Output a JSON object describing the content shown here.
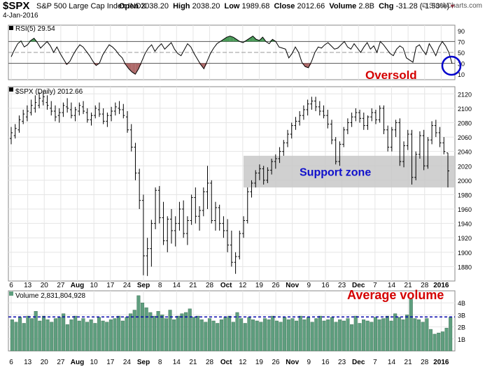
{
  "header": {
    "symbol": "$SPX",
    "name": "S&P 500 Large Cap Index",
    "exchange": "INDX",
    "date": "4-Jan-2016",
    "open_label": "Open",
    "open": "2038.20",
    "high_label": "High",
    "high": "2038.20",
    "low_label": "Low",
    "low": "1989.68",
    "close_label": "Close",
    "close": "2012.66",
    "volume_label": "Volume",
    "volume": "2.8B",
    "chg_label": "Chg",
    "chg": "-31.28 (-1.53%)",
    "credit": "© StockCharts.com"
  },
  "chart_data": [
    {
      "type": "line",
      "panel": "RSI",
      "legend": "RSI(5) 29.54",
      "ylim": [
        0,
        100
      ],
      "yticks": [
        10,
        30,
        50,
        70,
        90
      ],
      "overbought": 70,
      "oversold": 30,
      "midline": 50,
      "series": [
        {
          "values": [
            42,
            55,
            66,
            71,
            60,
            64,
            72,
            76,
            68,
            58,
            64,
            70,
            62,
            50,
            60,
            48,
            38,
            28,
            34,
            46,
            56,
            64,
            60,
            52,
            44,
            34,
            26,
            30,
            45,
            55,
            64,
            60,
            54,
            46,
            40,
            28,
            20,
            14,
            10,
            20,
            34,
            48,
            58,
            64,
            52,
            60,
            66,
            56,
            62,
            68,
            56,
            48,
            44,
            55,
            66,
            60,
            48,
            38,
            28,
            20,
            34,
            48,
            58,
            66,
            70,
            74,
            78,
            80,
            78,
            74,
            70,
            68,
            72,
            76,
            80,
            74,
            72,
            78,
            70,
            66,
            74,
            70,
            60,
            58,
            56,
            40,
            48,
            60,
            50,
            32,
            24,
            22,
            34,
            50,
            60,
            58,
            64,
            68,
            62,
            56,
            58,
            64,
            70,
            60,
            56,
            66,
            58,
            50,
            60,
            68,
            56,
            62,
            50,
            70,
            64,
            56,
            48,
            44,
            56,
            62,
            58,
            40,
            36,
            32,
            60,
            64,
            54,
            46,
            66,
            56,
            44,
            60,
            70,
            62,
            50,
            29.54
          ]
        }
      ],
      "annotation": "Oversold"
    },
    {
      "type": "bar",
      "panel": "price",
      "legend": "$SPX (Daily) 2012.66",
      "ylim": [
        1860,
        2130
      ],
      "yticks": [
        1880,
        1900,
        1920,
        1940,
        1960,
        1980,
        2000,
        2020,
        2040,
        2060,
        2080,
        2100,
        2120
      ],
      "ohlc": [
        [
          2058,
          2074,
          2050,
          2066
        ],
        [
          2062,
          2078,
          2058,
          2072
        ],
        [
          2070,
          2090,
          2066,
          2084
        ],
        [
          2082,
          2098,
          2078,
          2092
        ],
        [
          2088,
          2104,
          2082,
          2096
        ],
        [
          2094,
          2112,
          2090,
          2104
        ],
        [
          2100,
          2118,
          2094,
          2108
        ],
        [
          2104,
          2122,
          2100,
          2114
        ],
        [
          2110,
          2124,
          2104,
          2116
        ],
        [
          2108,
          2118,
          2098,
          2104
        ],
        [
          2100,
          2110,
          2090,
          2096
        ],
        [
          2096,
          2104,
          2082,
          2088
        ],
        [
          2090,
          2100,
          2080,
          2094
        ],
        [
          2094,
          2108,
          2088,
          2104
        ],
        [
          2102,
          2114,
          2094,
          2100
        ],
        [
          2098,
          2108,
          2086,
          2090
        ],
        [
          2090,
          2102,
          2082,
          2098
        ],
        [
          2096,
          2108,
          2090,
          2104
        ],
        [
          2102,
          2110,
          2092,
          2096
        ],
        [
          2094,
          2100,
          2080,
          2084
        ],
        [
          2084,
          2094,
          2076,
          2090
        ],
        [
          2090,
          2104,
          2086,
          2100
        ],
        [
          2098,
          2108,
          2088,
          2092
        ],
        [
          2092,
          2100,
          2078,
          2082
        ],
        [
          2082,
          2094,
          2074,
          2090
        ],
        [
          2090,
          2102,
          2082,
          2096
        ],
        [
          2096,
          2108,
          2090,
          2102
        ],
        [
          2100,
          2110,
          2092,
          2098
        ],
        [
          2098,
          2106,
          2086,
          2090
        ],
        [
          2088,
          2096,
          2066,
          2070
        ],
        [
          2070,
          2078,
          2040,
          2046
        ],
        [
          2046,
          2052,
          2000,
          2010
        ],
        [
          2010,
          2016,
          1960,
          1972
        ],
        [
          1972,
          1980,
          1868,
          1895
        ],
        [
          1895,
          1920,
          1867,
          1905
        ],
        [
          1905,
          1945,
          1880,
          1940
        ],
        [
          1940,
          1990,
          1932,
          1986
        ],
        [
          1986,
          1992,
          1940,
          1948
        ],
        [
          1948,
          1970,
          1910,
          1916
        ],
        [
          1916,
          1950,
          1900,
          1946
        ],
        [
          1946,
          1960,
          1912,
          1930
        ],
        [
          1930,
          1950,
          1908,
          1940
        ],
        [
          1940,
          1970,
          1930,
          1960
        ],
        [
          1960,
          1972,
          1920,
          1926
        ],
        [
          1926,
          1950,
          1910,
          1944
        ],
        [
          1944,
          1980,
          1938,
          1976
        ],
        [
          1976,
          1990,
          1940,
          1950
        ],
        [
          1950,
          1964,
          1930,
          1958
        ],
        [
          1958,
          1990,
          1950,
          1984
        ],
        [
          1984,
          2020,
          1960,
          1996
        ],
        [
          1996,
          2000,
          1940,
          1944
        ],
        [
          1944,
          1970,
          1930,
          1962
        ],
        [
          1962,
          1966,
          1930,
          1940
        ],
        [
          1940,
          1950,
          1920,
          1930
        ],
        [
          1930,
          1946,
          1900,
          1910
        ],
        [
          1910,
          1930,
          1880,
          1886
        ],
        [
          1886,
          1900,
          1870,
          1894
        ],
        [
          1894,
          1930,
          1890,
          1926
        ],
        [
          1926,
          1950,
          1920,
          1944
        ],
        [
          1944,
          1990,
          1940,
          1984
        ],
        [
          1984,
          2000,
          1976,
          1996
        ],
        [
          1996,
          2014,
          1990,
          2010
        ],
        [
          2010,
          2022,
          2000,
          2016
        ],
        [
          2016,
          2020,
          1994,
          2000
        ],
        [
          2000,
          2018,
          1996,
          2014
        ],
        [
          2014,
          2030,
          2008,
          2026
        ],
        [
          2026,
          2036,
          2016,
          2030
        ],
        [
          2030,
          2046,
          2024,
          2040
        ],
        [
          2040,
          2056,
          2034,
          2052
        ],
        [
          2052,
          2070,
          2046,
          2064
        ],
        [
          2064,
          2080,
          2058,
          2076
        ],
        [
          2076,
          2088,
          2070,
          2082
        ],
        [
          2082,
          2096,
          2076,
          2090
        ],
        [
          2090,
          2104,
          2084,
          2098
        ],
        [
          2098,
          2112,
          2090,
          2106
        ],
        [
          2106,
          2116,
          2098,
          2110
        ],
        [
          2110,
          2116,
          2096,
          2102
        ],
        [
          2102,
          2110,
          2090,
          2096
        ],
        [
          2096,
          2104,
          2086,
          2090
        ],
        [
          2090,
          2098,
          2072,
          2078
        ],
        [
          2078,
          2084,
          2050,
          2056
        ],
        [
          2056,
          2060,
          2022,
          2026
        ],
        [
          2026,
          2054,
          2020,
          2050
        ],
        [
          2050,
          2074,
          2046,
          2070
        ],
        [
          2070,
          2086,
          2064,
          2080
        ],
        [
          2080,
          2094,
          2074,
          2088
        ],
        [
          2088,
          2100,
          2082,
          2094
        ],
        [
          2094,
          2098,
          2080,
          2086
        ],
        [
          2086,
          2094,
          2070,
          2076
        ],
        [
          2076,
          2090,
          2070,
          2088
        ],
        [
          2088,
          2100,
          2082,
          2094
        ],
        [
          2094,
          2098,
          2078,
          2084
        ],
        [
          2084,
          2104,
          2080,
          2100
        ],
        [
          2100,
          2104,
          2064,
          2070
        ],
        [
          2070,
          2076,
          2040,
          2046
        ],
        [
          2046,
          2074,
          2040,
          2070
        ],
        [
          2070,
          2084,
          2060,
          2080
        ],
        [
          2080,
          2086,
          2020,
          2026
        ],
        [
          2026,
          2054,
          2018,
          2048
        ],
        [
          2048,
          2070,
          2042,
          2064
        ],
        [
          2064,
          2070,
          1994,
          2004
        ],
        [
          2004,
          2040,
          2000,
          2036
        ],
        [
          2036,
          2068,
          2030,
          2062
        ],
        [
          2062,
          2070,
          2014,
          2020
        ],
        [
          2020,
          2060,
          2016,
          2056
        ],
        [
          2056,
          2082,
          2050,
          2076
        ],
        [
          2076,
          2084,
          2060,
          2066
        ],
        [
          2066,
          2074,
          2046,
          2052
        ],
        [
          2052,
          2060,
          2036,
          2040
        ],
        [
          2038,
          2038,
          1990,
          2013
        ]
      ],
      "support_zone": [
        1990,
        2034
      ],
      "annotation": "Support zone"
    },
    {
      "type": "bar",
      "panel": "volume",
      "legend": "Volume 2,831,804,928",
      "ylim": [
        0,
        5
      ],
      "yticks": [
        "1B",
        "2B",
        "3B",
        "4B"
      ],
      "reference_line": 2.83,
      "values": [
        2.6,
        2.4,
        2.8,
        2.3,
        2.9,
        2.7,
        3.3,
        2.5,
        2.9,
        2.6,
        2.4,
        2.7,
        2.8,
        3.1,
        2.2,
        2.6,
        2.9,
        2.5,
        2.7,
        2.4,
        2.6,
        2.3,
        2.8,
        2.5,
        2.4,
        2.6,
        2.7,
        2.9,
        2.5,
        2.8,
        3.1,
        3.4,
        4.6,
        4.0,
        3.6,
        3.2,
        2.9,
        3.3,
        3.0,
        2.7,
        3.4,
        2.6,
        2.9,
        3.1,
        3.2,
        3.5,
        2.8,
        2.9,
        2.6,
        2.4,
        2.7,
        2.5,
        2.3,
        2.6,
        2.8,
        2.9,
        2.4,
        3.2,
        2.7,
        2.3,
        2.8,
        2.6,
        2.5,
        2.4,
        2.7,
        2.6,
        2.9,
        2.5,
        2.4,
        2.8,
        2.6,
        2.7,
        2.5,
        2.9,
        2.6,
        2.8,
        2.4,
        2.7,
        2.9,
        2.5,
        2.6,
        2.8,
        2.4,
        2.6,
        2.5,
        2.7,
        2.2,
        2.9,
        2.3,
        2.6,
        2.5,
        2.4,
        2.8,
        2.6,
        2.7,
        2.9,
        2.5,
        3.1,
        2.8,
        2.6,
        3.0,
        4.3,
        2.7,
        2.6,
        2.4,
        2.7,
        1.8,
        1.4,
        1.5,
        1.6,
        1.9,
        2.8
      ],
      "annotation": "Average volume"
    }
  ],
  "x_axis_labels": [
    "6",
    "13",
    "20",
    "27",
    "Aug",
    "10",
    "17",
    "24",
    "Sep",
    "8",
    "14",
    "21",
    "28",
    "Oct",
    "12",
    "19",
    "26",
    "Nov",
    "9",
    "16",
    "23",
    "Dec",
    "7",
    "14",
    "21",
    "28",
    "2016"
  ],
  "colors": {
    "up": "#2c8a3c",
    "down": "#b04040",
    "annotation": "#d40000",
    "support": "#c8c8c8",
    "volume": "#5e9e7e",
    "refline": "#0000aa",
    "circle": "#0000cc",
    "grid": "#e5e5e5"
  }
}
